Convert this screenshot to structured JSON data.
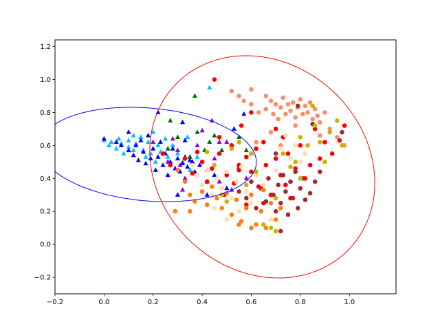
{
  "chart_data": {
    "type": "scatter",
    "title": "",
    "xlabel": "",
    "ylabel": "",
    "xlim": [
      -0.2,
      1.19
    ],
    "ylim": [
      -0.3,
      1.24
    ],
    "grid": false,
    "legend": "none",
    "xticks": [
      -0.2,
      0.0,
      0.2,
      0.4,
      0.6,
      0.8,
      1.0
    ],
    "xtick_labels": [
      "−0.2",
      "0.0",
      "0.2",
      "0.4",
      "0.6",
      "0.8",
      "1.0"
    ],
    "yticks": [
      -0.2,
      0.0,
      0.2,
      0.4,
      0.6,
      0.8,
      1.0,
      1.2
    ],
    "ytick_labels": [
      "−0.2",
      "0.0",
      "0.2",
      "0.4",
      "0.6",
      "0.8",
      "1.0",
      "1.2"
    ],
    "ellipses": [
      {
        "color": "#0000ff",
        "center": [
          0.18,
          0.545
        ],
        "width": 0.89,
        "height": 0.56,
        "angle_deg": -10
      },
      {
        "color": "#ff0000",
        "center": [
          0.645,
          0.47
        ],
        "width": 0.9,
        "height": 1.36,
        "angle_deg": 10
      }
    ],
    "series": [
      {
        "marker": "triangle",
        "color": "#00bfff",
        "points": [
          [
            0.0,
            0.63
          ],
          [
            0.02,
            0.6
          ],
          [
            0.03,
            0.62
          ],
          [
            0.05,
            0.58
          ],
          [
            0.06,
            0.64
          ],
          [
            0.07,
            0.61
          ],
          [
            0.08,
            0.55
          ],
          [
            0.1,
            0.63
          ],
          [
            0.1,
            0.59
          ],
          [
            0.12,
            0.66
          ],
          [
            0.12,
            0.57
          ],
          [
            0.13,
            0.61
          ],
          [
            0.15,
            0.65
          ],
          [
            0.16,
            0.57
          ],
          [
            0.17,
            0.53
          ],
          [
            0.18,
            0.62
          ],
          [
            0.19,
            0.55
          ],
          [
            0.2,
            0.68
          ],
          [
            0.21,
            0.5
          ],
          [
            0.22,
            0.6
          ],
          [
            0.23,
            0.56
          ],
          [
            0.25,
            0.64
          ],
          [
            0.26,
            0.53
          ],
          [
            0.28,
            0.6
          ],
          [
            0.3,
            0.55
          ],
          [
            0.32,
            0.5
          ],
          [
            0.34,
            0.65
          ],
          [
            0.35,
            0.45
          ],
          [
            0.38,
            0.53
          ],
          [
            0.43,
            0.95
          ]
        ]
      },
      {
        "marker": "triangle",
        "color": "#0000ff",
        "points": [
          [
            0.0,
            0.64
          ],
          [
            0.05,
            0.62
          ],
          [
            0.07,
            0.6
          ],
          [
            0.1,
            0.57
          ],
          [
            0.1,
            0.68
          ],
          [
            0.12,
            0.54
          ],
          [
            0.13,
            0.6
          ],
          [
            0.14,
            0.51
          ],
          [
            0.15,
            0.63
          ],
          [
            0.16,
            0.56
          ],
          [
            0.17,
            0.49
          ],
          [
            0.18,
            0.66
          ],
          [
            0.19,
            0.52
          ],
          [
            0.2,
            0.58
          ],
          [
            0.21,
            0.45
          ],
          [
            0.22,
            0.53
          ],
          [
            0.22,
            0.8
          ],
          [
            0.23,
            0.62
          ],
          [
            0.24,
            0.48
          ],
          [
            0.25,
            0.55
          ],
          [
            0.26,
            0.42
          ],
          [
            0.27,
            0.5
          ],
          [
            0.28,
            0.58
          ],
          [
            0.29,
            0.46
          ],
          [
            0.3,
            0.52
          ],
          [
            0.31,
            0.44
          ],
          [
            0.32,
            0.49
          ],
          [
            0.33,
            0.53
          ],
          [
            0.34,
            0.47
          ],
          [
            0.35,
            0.51
          ],
          [
            0.36,
            0.5
          ],
          [
            0.37,
            0.44
          ],
          [
            0.39,
            0.48
          ],
          [
            0.42,
            0.38
          ],
          [
            0.45,
            0.42
          ],
          [
            0.5,
            0.34
          ],
          [
            0.53,
            0.7
          ],
          [
            0.57,
            0.79
          ],
          [
            0.3,
            0.3
          ],
          [
            0.42,
            0.3
          ],
          [
            0.32,
            0.74
          ],
          [
            0.33,
            0.63
          ]
        ]
      },
      {
        "marker": "triangle",
        "color": "#9400d3",
        "points": [
          [
            0.2,
            0.62
          ],
          [
            0.24,
            0.55
          ],
          [
            0.26,
            0.5
          ],
          [
            0.28,
            0.64
          ],
          [
            0.3,
            0.57
          ],
          [
            0.31,
            0.48
          ],
          [
            0.33,
            0.4
          ],
          [
            0.35,
            0.53
          ],
          [
            0.38,
            0.6
          ],
          [
            0.4,
            0.69
          ],
          [
            0.42,
            0.45
          ],
          [
            0.44,
            0.75
          ],
          [
            0.45,
            0.52
          ],
          [
            0.47,
            0.38
          ],
          [
            0.5,
            0.62
          ],
          [
            0.52,
            0.33
          ],
          [
            0.55,
            0.47
          ],
          [
            0.58,
            0.4
          ],
          [
            0.6,
            0.55
          ],
          [
            0.47,
            0.62
          ],
          [
            0.32,
            0.33
          ]
        ]
      },
      {
        "marker": "triangle",
        "color": "#007000",
        "points": [
          [
            0.26,
            0.58
          ],
          [
            0.27,
            0.75
          ],
          [
            0.3,
            0.65
          ],
          [
            0.35,
            0.53
          ],
          [
            0.37,
            0.9
          ],
          [
            0.38,
            0.68
          ],
          [
            0.41,
            0.57
          ],
          [
            0.43,
            0.62
          ],
          [
            0.45,
            0.66
          ],
          [
            0.48,
            0.57
          ],
          [
            0.52,
            0.6
          ],
          [
            0.55,
            0.65
          ],
          [
            0.58,
            0.57
          ]
        ]
      },
      {
        "marker": "circle",
        "color": "#ff8c69",
        "points": [
          [
            0.52,
            0.93
          ],
          [
            0.55,
            0.9
          ],
          [
            0.57,
            0.87
          ],
          [
            0.6,
            0.85
          ],
          [
            0.6,
            0.94
          ],
          [
            0.63,
            0.8
          ],
          [
            0.66,
            0.82
          ],
          [
            0.68,
            0.87
          ],
          [
            0.69,
            0.79
          ],
          [
            0.7,
            0.85
          ],
          [
            0.71,
            0.76
          ],
          [
            0.72,
            0.83
          ],
          [
            0.73,
            0.89
          ],
          [
            0.74,
            0.79
          ],
          [
            0.75,
            0.85
          ],
          [
            0.76,
            0.81
          ],
          [
            0.77,
            0.86
          ],
          [
            0.78,
            0.77
          ],
          [
            0.79,
            0.83
          ],
          [
            0.8,
            0.88
          ],
          [
            0.81,
            0.79
          ],
          [
            0.82,
            0.84
          ],
          [
            0.83,
            0.8
          ],
          [
            0.84,
            0.86
          ],
          [
            0.85,
            0.76
          ],
          [
            0.86,
            0.82
          ],
          [
            0.87,
            0.78
          ],
          [
            0.88,
            0.74
          ],
          [
            0.9,
            0.8
          ],
          [
            0.92,
            0.7
          ],
          [
            0.95,
            0.65
          ],
          [
            0.98,
            0.6
          ],
          [
            0.62,
            0.62
          ],
          [
            0.68,
            0.68
          ],
          [
            0.72,
            0.6
          ],
          [
            0.66,
            0.9
          ],
          [
            0.88,
            0.66
          ],
          [
            0.78,
            0.72
          ]
        ]
      },
      {
        "marker": "circle",
        "color": "#ff0000",
        "points": [
          [
            0.24,
            0.55
          ],
          [
            0.27,
            0.48
          ],
          [
            0.3,
            0.45
          ],
          [
            0.33,
            0.52
          ],
          [
            0.36,
            0.43
          ],
          [
            0.4,
            0.5
          ],
          [
            0.42,
            0.38
          ],
          [
            0.44,
            0.46
          ],
          [
            0.45,
            1.0
          ],
          [
            0.47,
            0.55
          ],
          [
            0.49,
            0.3
          ],
          [
            0.5,
            0.42
          ],
          [
            0.52,
            0.6
          ],
          [
            0.53,
            0.37
          ],
          [
            0.55,
            0.48
          ],
          [
            0.56,
            0.72
          ],
          [
            0.58,
            0.53
          ],
          [
            0.6,
            0.44
          ],
          [
            0.6,
            0.8
          ],
          [
            0.62,
            0.58
          ],
          [
            0.63,
            0.35
          ],
          [
            0.65,
            0.62
          ],
          [
            0.66,
            0.48
          ],
          [
            0.68,
            0.3
          ],
          [
            0.7,
            0.52
          ],
          [
            0.7,
            0.7
          ],
          [
            0.72,
            0.42
          ],
          [
            0.73,
            0.65
          ],
          [
            0.74,
            0.36
          ],
          [
            0.75,
            0.55
          ],
          [
            0.76,
            0.28
          ],
          [
            0.78,
            0.46
          ],
          [
            0.8,
            0.6
          ],
          [
            0.82,
            0.4
          ],
          [
            0.84,
            0.48
          ],
          [
            0.86,
            0.7
          ],
          [
            0.88,
            0.52
          ],
          [
            0.9,
            0.62
          ],
          [
            0.93,
            0.55
          ],
          [
            0.96,
            0.63
          ],
          [
            0.98,
            0.72
          ],
          [
            0.58,
            0.24
          ],
          [
            0.65,
            0.25
          ],
          [
            0.55,
            0.45
          ],
          [
            0.47,
            0.65
          ],
          [
            0.38,
            0.56
          ]
        ]
      },
      {
        "marker": "circle",
        "color": "#a52a2a",
        "points": [
          [
            0.55,
            0.32
          ],
          [
            0.58,
            0.28
          ],
          [
            0.6,
            0.38
          ],
          [
            0.62,
            0.22
          ],
          [
            0.64,
            0.34
          ],
          [
            0.66,
            0.26
          ],
          [
            0.67,
            0.4
          ],
          [
            0.69,
            0.3
          ],
          [
            0.7,
            0.2
          ],
          [
            0.71,
            0.36
          ],
          [
            0.72,
            0.25
          ],
          [
            0.73,
            0.42
          ],
          [
            0.74,
            0.32
          ],
          [
            0.75,
            0.18
          ],
          [
            0.76,
            0.38
          ],
          [
            0.77,
            0.28
          ],
          [
            0.78,
            0.44
          ],
          [
            0.79,
            0.22
          ],
          [
            0.8,
            0.34
          ],
          [
            0.81,
            0.4
          ],
          [
            0.82,
            0.27
          ],
          [
            0.84,
            0.31
          ],
          [
            0.86,
            0.38
          ],
          [
            0.88,
            0.44
          ],
          [
            0.7,
            0.55
          ],
          [
            0.72,
            0.08
          ],
          [
            0.85,
            0.73
          ],
          [
            0.97,
            0.68
          ],
          [
            0.79,
            0.84
          ]
        ]
      },
      {
        "marker": "circle",
        "color": "#ff7f0e",
        "points": [
          [
            0.3,
            0.45
          ],
          [
            0.33,
            0.38
          ],
          [
            0.35,
            0.3
          ],
          [
            0.37,
            0.26
          ],
          [
            0.4,
            0.32
          ],
          [
            0.42,
            0.24
          ],
          [
            0.44,
            0.35
          ],
          [
            0.46,
            0.28
          ],
          [
            0.48,
            0.22
          ],
          [
            0.5,
            0.31
          ],
          [
            0.52,
            0.18
          ],
          [
            0.54,
            0.27
          ],
          [
            0.56,
            0.14
          ],
          [
            0.58,
            0.22
          ],
          [
            0.6,
            0.3
          ],
          [
            0.62,
            0.12
          ],
          [
            0.64,
            0.2
          ],
          [
            0.66,
            0.1
          ],
          [
            0.68,
            0.25
          ],
          [
            0.7,
            0.15
          ],
          [
            0.72,
            0.22
          ],
          [
            0.6,
            0.1
          ],
          [
            0.55,
            0.12
          ],
          [
            0.29,
            0.2
          ],
          [
            0.35,
            0.2
          ],
          [
            0.65,
            0.33
          ]
        ]
      },
      {
        "marker": "circle",
        "color": "#ffdead",
        "points": [
          [
            0.36,
            0.48
          ],
          [
            0.38,
            0.42
          ],
          [
            0.4,
            0.36
          ],
          [
            0.42,
            0.45
          ],
          [
            0.44,
            0.3
          ],
          [
            0.46,
            0.4
          ],
          [
            0.48,
            0.34
          ],
          [
            0.5,
            0.44
          ],
          [
            0.52,
            0.28
          ],
          [
            0.54,
            0.38
          ],
          [
            0.56,
            0.47
          ],
          [
            0.58,
            0.32
          ],
          [
            0.6,
            0.25
          ],
          [
            0.62,
            0.42
          ],
          [
            0.65,
            0.36
          ],
          [
            0.68,
            0.15
          ],
          [
            0.7,
            0.45
          ],
          [
            0.72,
            0.58
          ],
          [
            0.74,
            0.66
          ],
          [
            0.76,
            0.52
          ],
          [
            0.78,
            0.6
          ],
          [
            0.8,
            0.5
          ],
          [
            0.82,
            0.55
          ],
          [
            0.5,
            0.15
          ],
          [
            0.45,
            0.22
          ],
          [
            0.55,
            0.2
          ]
        ]
      },
      {
        "marker": "circle",
        "color": "#c8b400",
        "points": [
          [
            0.42,
            0.56
          ],
          [
            0.45,
            0.48
          ],
          [
            0.48,
            0.3
          ],
          [
            0.5,
            0.26
          ],
          [
            0.52,
            0.58
          ],
          [
            0.55,
            0.62
          ],
          [
            0.58,
            0.36
          ],
          [
            0.62,
            0.44
          ],
          [
            0.65,
            0.12
          ],
          [
            0.68,
            0.1
          ],
          [
            0.7,
            0.28
          ],
          [
            0.73,
            0.55
          ],
          [
            0.76,
            0.47
          ],
          [
            0.78,
            0.5
          ],
          [
            0.8,
            0.4
          ],
          [
            0.83,
            0.6
          ],
          [
            0.85,
            0.84
          ],
          [
            0.86,
            0.72
          ],
          [
            0.88,
            0.62
          ],
          [
            0.9,
            0.5
          ],
          [
            0.92,
            0.68
          ],
          [
            0.95,
            0.75
          ],
          [
            0.97,
            0.6
          ],
          [
            0.7,
            0.08
          ],
          [
            0.6,
            0.55
          ],
          [
            0.8,
            0.65
          ]
        ]
      }
    ]
  }
}
